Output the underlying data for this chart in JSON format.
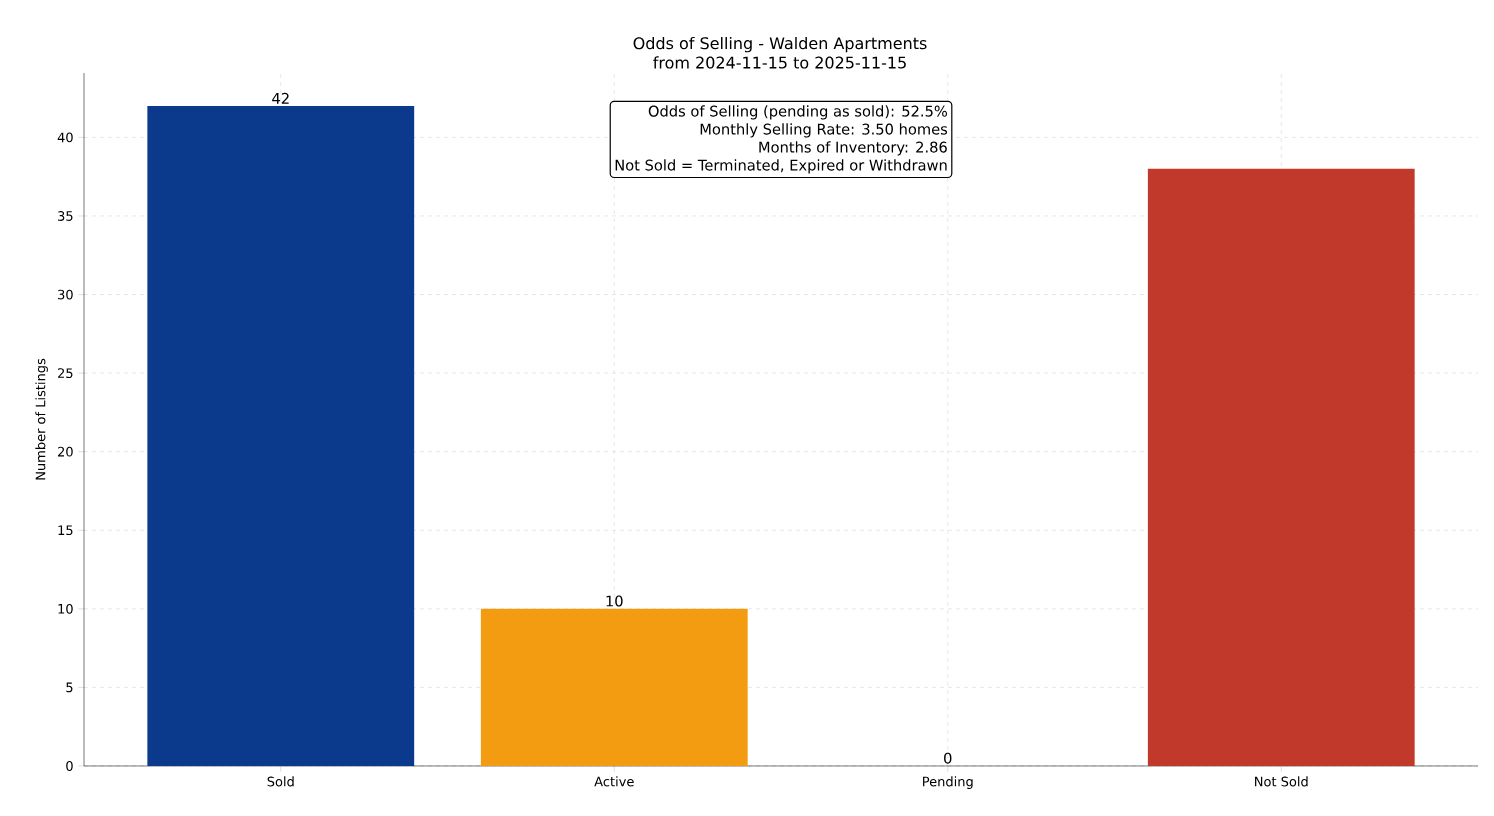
{
  "chart_data": {
    "type": "bar",
    "title": "Odds of Selling - Walden Apartments",
    "subtitle": "from 2024-11-15 to 2025-11-15",
    "ylabel": "Number of Listings",
    "categories": [
      "Sold",
      "Active",
      "Pending",
      "Not Sold"
    ],
    "values": [
      42,
      10,
      0,
      38
    ],
    "colors": [
      "#0b3a8c",
      "#f39c12",
      "#7f7f7f",
      "#c0392b"
    ],
    "value_labels": [
      "42",
      "10",
      "0",
      null
    ],
    "ylim": [
      0,
      44.1
    ],
    "yticks": [
      0,
      5,
      10,
      15,
      20,
      25,
      30,
      35,
      40
    ],
    "grid": true,
    "annotations": [
      "Odds of Selling (pending as sold): 52.5%",
      "Monthly Selling Rate: 3.50 homes",
      "Months of Inventory: 2.86",
      "Not Sold = Terminated, Expired or Withdrawn"
    ]
  }
}
